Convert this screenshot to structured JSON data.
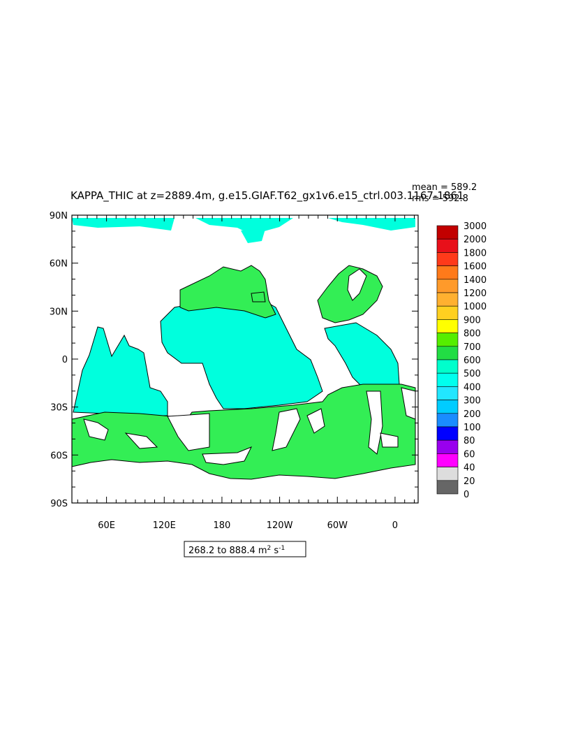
{
  "title": "KAPPA_THIC at z=2889.4m, g.e15.GIAF.T62_gx1v6.e15_ctrl.003.1167-1861",
  "stats": {
    "mean": "mean = 589.2",
    "rms": "rms = 592.8"
  },
  "range_label_prefix": "268.2 to 888.4 m",
  "range_label_units": "s",
  "y_ticks": [
    {
      "label": "90N",
      "lat": 90
    },
    {
      "label": "60N",
      "lat": 60
    },
    {
      "label": "30N",
      "lat": 30
    },
    {
      "label": "0",
      "lat": 0
    },
    {
      "label": "30S",
      "lat": -30
    },
    {
      "label": "60S",
      "lat": -60
    },
    {
      "label": "90S",
      "lat": -90
    }
  ],
  "x_ticks": [
    {
      "label": "60E",
      "lon": 60
    },
    {
      "label": "120E",
      "lon": 120
    },
    {
      "label": "180",
      "lon": 180
    },
    {
      "label": "120W",
      "lon": 240
    },
    {
      "label": "60W",
      "lon": 300
    },
    {
      "label": "0",
      "lon": 360
    }
  ],
  "map_extent": {
    "lon_min": 24,
    "lon_max": 384,
    "lat_min": -90,
    "lat_max": 90
  },
  "colorbar": {
    "levels": [
      "3000",
      "2000",
      "1800",
      "1600",
      "1400",
      "1200",
      "1000",
      "900",
      "800",
      "700",
      "600",
      "500",
      "400",
      "300",
      "200",
      "100",
      "80",
      "60",
      "40",
      "20",
      "0"
    ],
    "colors": [
      "#c20000",
      "#e8101a",
      "#ff3a1a",
      "#ff7a1a",
      "#ff9a2a",
      "#ffb030",
      "#ffd020",
      "#ffff00",
      "#55ee00",
      "#22dd44",
      "#00ffcc",
      "#00ffee",
      "#22e6ff",
      "#00ccff",
      "#1a8cff",
      "#0000ff",
      "#9900ee",
      "#ff00ff",
      "#dddddd",
      "#666666"
    ]
  },
  "fill_colors": {
    "green": "#33ee55",
    "cyan": "#00ffdd"
  }
}
